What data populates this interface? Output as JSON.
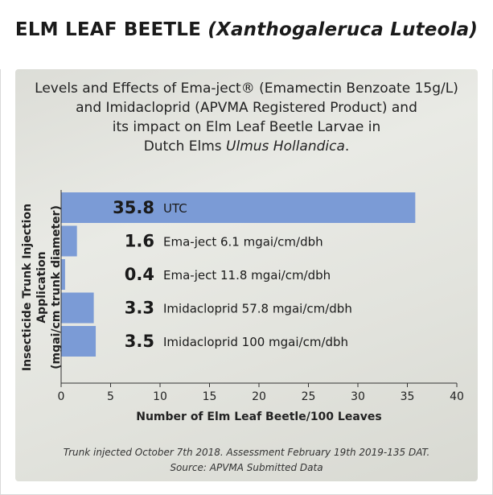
{
  "header": {
    "title": "ELM LEAF BEETLE",
    "title_species": "(Xanthogaleruca Luteola)"
  },
  "subtitle": {
    "line1": "Levels and Effects of Ema-ject® (Emamectin Benzoate 15g/L)",
    "line2": "and Imidacloprid (APVMA Registered Product) and",
    "line3": "its impact on Elm Leaf Beetle Larvae in",
    "line4_text": "Dutch Elms",
    "line4_species": "Ulmus Hollandica",
    "line4_end": "."
  },
  "footnote": {
    "line1": "Trunk injected October 7th 2018. Assessment February 19th 2019-135 DAT.",
    "line2": "Source: APVMA Submitted Data"
  },
  "colors": {
    "bar": "#7b9bd6",
    "axis": "#333333",
    "panel": "#e4e5df"
  },
  "chart_data": {
    "type": "bar",
    "orientation": "horizontal",
    "categories": [
      "UTC",
      "Ema-ject 6.1 mgai/cm/dbh",
      "Ema-ject 11.8 mgai/cm/dbh",
      "Imidacloprid 57.8 mgai/cm/dbh",
      "Imidacloprid 100 mgai/cm/dbh"
    ],
    "values": [
      35.8,
      1.6,
      0.4,
      3.3,
      3.5
    ],
    "value_labels": [
      "35.8",
      "1.6",
      "0.4",
      "3.3",
      "3.5"
    ],
    "xlabel": "Number of Elm Leaf Beetle/100 Leaves",
    "ylabel_line1": "Insecticide Trunk Injection Application",
    "ylabel_line2": "(mgai/cm trunk diameter)",
    "xlim": [
      0,
      40
    ],
    "xticks": [
      0,
      5,
      10,
      15,
      20,
      25,
      30,
      35,
      40
    ],
    "xtick_labels": [
      "0",
      "5",
      "10",
      "15",
      "20",
      "25",
      "30",
      "35",
      "40"
    ],
    "grid": false,
    "legend": "none"
  }
}
